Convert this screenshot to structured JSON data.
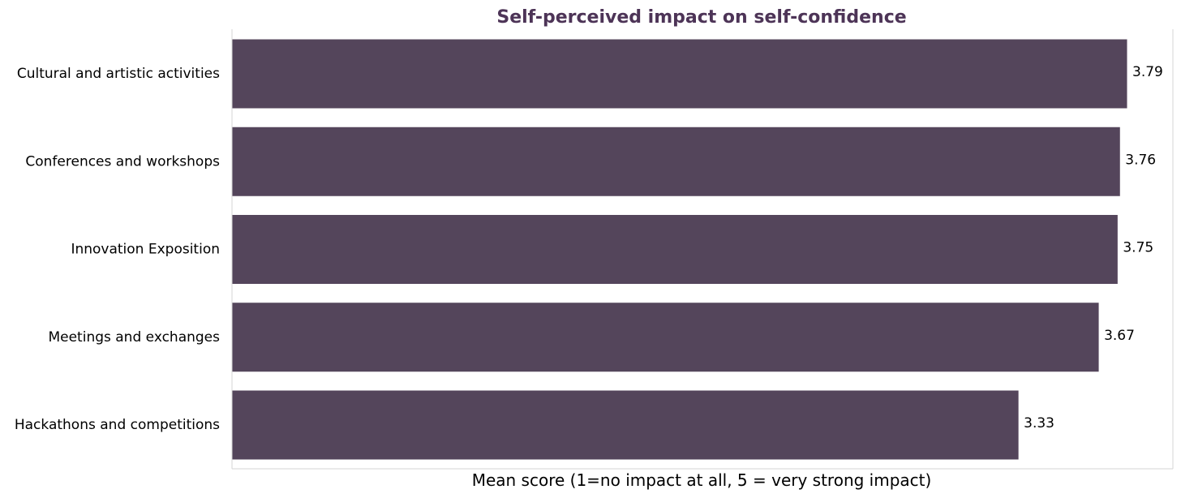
{
  "colors": {
    "bar": "#54455b",
    "title": "#4d3457",
    "axis": "#d6d6d6"
  },
  "chart_data": {
    "type": "bar",
    "orientation": "horizontal",
    "title": "Self-perceived impact on self-confidence",
    "xlabel": "Mean score (1=no impact at all, 5 = very strong impact)",
    "ylabel": "",
    "categories": [
      "Cultural and artistic activities",
      "Conferences and workshops",
      "Innovation Exposition",
      "Meetings and exchanges",
      "Hackathons and competitions"
    ],
    "values": [
      3.79,
      3.76,
      3.75,
      3.67,
      3.33
    ],
    "value_labels": [
      "3.79",
      "3.76",
      "3.75",
      "3.67",
      "3.33"
    ],
    "xlim": [
      0,
      4.0
    ],
    "grid": false,
    "legend": "none"
  }
}
